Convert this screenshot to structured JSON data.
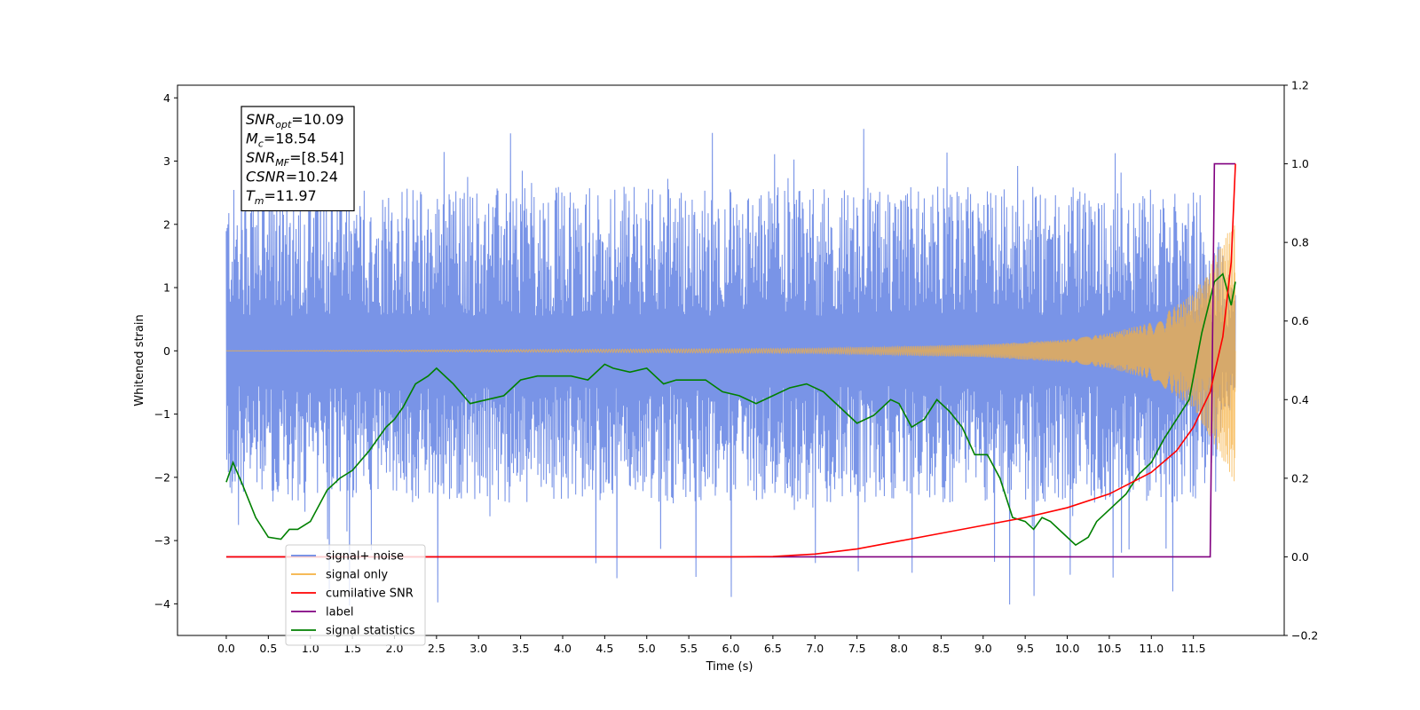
{
  "chart_data": {
    "type": "line",
    "xlabel": "Time (s)",
    "ylabel": "Whitened strain",
    "xlim": [
      -0.58,
      12.58
    ],
    "ylim": [
      -4.5,
      4.2
    ],
    "ylim_right": [
      -0.2,
      1.2
    ],
    "x_ticks": [
      0.0,
      0.5,
      1.0,
      1.5,
      2.0,
      2.5,
      3.0,
      3.5,
      4.0,
      4.5,
      5.0,
      5.5,
      6.0,
      6.5,
      7.0,
      7.5,
      8.0,
      8.5,
      9.0,
      9.5,
      10.0,
      10.5,
      11.0,
      11.5
    ],
    "x_tick_labels": [
      "0.0",
      "0.5",
      "1.0",
      "1.5",
      "2.0",
      "2.5",
      "3.0",
      "3.5",
      "4.0",
      "4.5",
      "5.0",
      "5.5",
      "6.0",
      "6.5",
      "7.0",
      "7.5",
      "8.0",
      "8.5",
      "9.0",
      "9.5",
      "10.0",
      "10.5",
      "11.0",
      "11.5"
    ],
    "y_ticks": [
      -4,
      -3,
      -2,
      -1,
      0,
      1,
      2,
      3,
      4
    ],
    "y_tick_labels": [
      "−4",
      "−3",
      "−2",
      "−1",
      "0",
      "1",
      "2",
      "3",
      "4"
    ],
    "y_ticks_right": [
      -0.2,
      0.0,
      0.2,
      0.4,
      0.6,
      0.8,
      1.0,
      1.2
    ],
    "y_tick_labels_right": [
      "−0.2",
      "0.0",
      "0.2",
      "0.4",
      "0.6",
      "0.8",
      "1.0",
      "1.2"
    ],
    "grid": false,
    "legend_position": "bottom-left",
    "annotation": {
      "lines": [
        {
          "base": "SNR",
          "sub": "opt",
          "value": "=10.09"
        },
        {
          "base": "M",
          "sub": "c",
          "value": "=18.54"
        },
        {
          "base": "SNR",
          "sub": "MF",
          "value": "=[8.54]"
        },
        {
          "base": "CSNR",
          "sub": "",
          "value": "=10.24"
        },
        {
          "base": "T",
          "sub": "m",
          "value": "=11.97"
        }
      ]
    },
    "series": [
      {
        "name": "signal+ noise",
        "color": "#6a88e4",
        "axis": "left",
        "kind": "noise_band",
        "x_range": [
          0.0,
          12.0
        ],
        "band_upper_typical": 1.7,
        "band_lower_typical": -1.8,
        "spike_max": 3.83,
        "spike_min": -4.1
      },
      {
        "name": "signal only",
        "color": "#f5b041",
        "axis": "left",
        "kind": "chirp",
        "x_range": [
          0.0,
          12.0
        ],
        "envelope_x": [
          0.0,
          7.0,
          9.0,
          10.0,
          10.5,
          11.0,
          11.5,
          11.8,
          12.0
        ],
        "envelope_amp": [
          0.0,
          0.04,
          0.1,
          0.18,
          0.28,
          0.45,
          0.9,
          1.6,
          2.1
        ]
      },
      {
        "name": "cumilative SNR",
        "color": "#ff0000",
        "axis": "right",
        "x": [
          0.0,
          6.0,
          6.5,
          7.0,
          7.5,
          8.0,
          8.5,
          9.0,
          9.5,
          10.0,
          10.5,
          11.0,
          11.3,
          11.5,
          11.7,
          11.85,
          11.95,
          12.0
        ],
        "y": [
          0.0,
          0.0,
          0.001,
          0.007,
          0.02,
          0.04,
          0.06,
          0.08,
          0.1,
          0.125,
          0.16,
          0.215,
          0.27,
          0.33,
          0.42,
          0.56,
          0.75,
          1.0
        ]
      },
      {
        "name": "label",
        "color": "#800080",
        "axis": "right",
        "x": [
          0.0,
          11.7,
          11.75,
          11.97,
          11.97,
          12.0
        ],
        "y": [
          0.0,
          0.0,
          1.0,
          1.0,
          1.0,
          1.0
        ]
      },
      {
        "name": "signal statistics",
        "color": "#008000",
        "axis": "right",
        "x": [
          0.0,
          0.08,
          0.2,
          0.35,
          0.5,
          0.65,
          0.75,
          0.85,
          1.0,
          1.2,
          1.35,
          1.5,
          1.7,
          1.9,
          2.0,
          2.1,
          2.25,
          2.4,
          2.5,
          2.7,
          2.9,
          3.1,
          3.3,
          3.5,
          3.7,
          3.9,
          4.1,
          4.3,
          4.5,
          4.6,
          4.8,
          5.0,
          5.2,
          5.35,
          5.5,
          5.7,
          5.9,
          6.1,
          6.3,
          6.5,
          6.7,
          6.9,
          7.1,
          7.3,
          7.5,
          7.7,
          7.9,
          8.0,
          8.15,
          8.3,
          8.45,
          8.6,
          8.75,
          8.9,
          9.05,
          9.2,
          9.35,
          9.5,
          9.6,
          9.7,
          9.8,
          9.95,
          10.1,
          10.25,
          10.35,
          10.5,
          10.7,
          10.85,
          11.0,
          11.15,
          11.3,
          11.45,
          11.6,
          11.75,
          11.85,
          11.95,
          12.0
        ],
        "y": [
          0.19,
          0.24,
          0.18,
          0.1,
          0.05,
          0.045,
          0.07,
          0.07,
          0.09,
          0.17,
          0.2,
          0.22,
          0.27,
          0.33,
          0.35,
          0.38,
          0.44,
          0.46,
          0.48,
          0.44,
          0.39,
          0.4,
          0.41,
          0.45,
          0.46,
          0.46,
          0.46,
          0.45,
          0.49,
          0.48,
          0.47,
          0.48,
          0.44,
          0.45,
          0.45,
          0.45,
          0.42,
          0.41,
          0.39,
          0.41,
          0.43,
          0.44,
          0.42,
          0.38,
          0.34,
          0.36,
          0.4,
          0.39,
          0.33,
          0.35,
          0.4,
          0.37,
          0.33,
          0.26,
          0.26,
          0.2,
          0.1,
          0.09,
          0.07,
          0.1,
          0.09,
          0.06,
          0.03,
          0.05,
          0.09,
          0.12,
          0.16,
          0.21,
          0.24,
          0.3,
          0.35,
          0.4,
          0.57,
          0.7,
          0.72,
          0.64,
          0.7
        ]
      }
    ]
  },
  "legend": {
    "items": [
      {
        "label": "signal+ noise",
        "color": "#6a88e4"
      },
      {
        "label": "signal only",
        "color": "#f5b041"
      },
      {
        "label": "cumilative SNR",
        "color": "#ff0000"
      },
      {
        "label": "label",
        "color": "#800080"
      },
      {
        "label": "signal statistics",
        "color": "#008000"
      }
    ]
  }
}
